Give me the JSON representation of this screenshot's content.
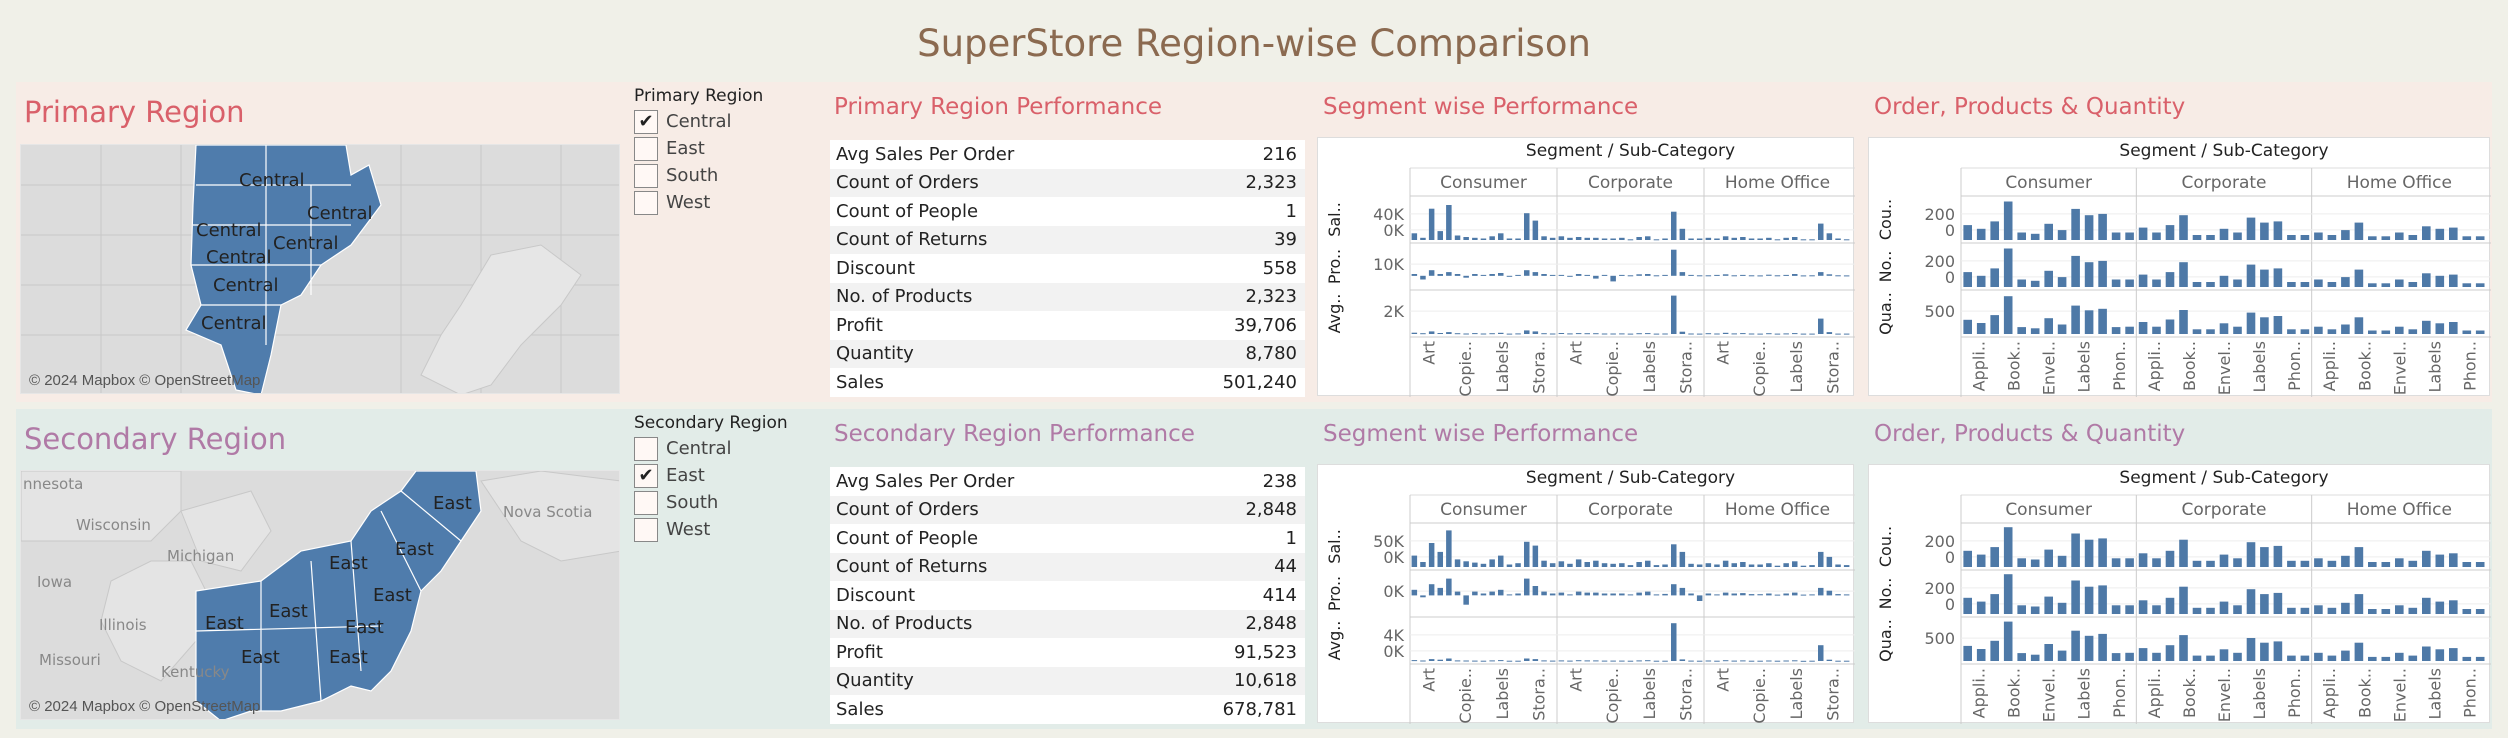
{
  "title": "SuperStore Region-wise Comparison",
  "colors": {
    "bar": "#4e79a7",
    "primary_accent": "#d9606a",
    "secondary_accent": "#b07aa6",
    "title": "#8b6a50"
  },
  "primary": {
    "region_title": "Primary Region",
    "map": {
      "labels": [
        "Central",
        "Central",
        "Central",
        "Central",
        "Central",
        "Central",
        "Central"
      ],
      "credit": "© 2024 Mapbox © OpenStreetMap"
    },
    "filter": {
      "title": "Primary Region",
      "options": [
        {
          "label": "Central",
          "checked": true
        },
        {
          "label": "East",
          "checked": false
        },
        {
          "label": "South",
          "checked": false
        },
        {
          "label": "West",
          "checked": false
        }
      ]
    },
    "performance_title": "Primary Region Performance",
    "kpis": [
      {
        "label": "Avg Sales Per Order",
        "value": "216"
      },
      {
        "label": "Count of Orders",
        "value": "2,323"
      },
      {
        "label": "Count of People",
        "value": "1"
      },
      {
        "label": "Count of Returns",
        "value": "39"
      },
      {
        "label": "Discount",
        "value": "558"
      },
      {
        "label": "No. of Products",
        "value": "2,323"
      },
      {
        "label": "Profit",
        "value": "39,706"
      },
      {
        "label": "Quantity",
        "value": "8,780"
      },
      {
        "label": "Sales",
        "value": "501,240"
      }
    ],
    "segment_title": "Segment wise Performance",
    "order_title": "Order, Products & Quantity"
  },
  "secondary": {
    "region_title": "Secondary Region",
    "map": {
      "labels": [
        "East",
        "East",
        "East",
        "East",
        "East",
        "East",
        "East",
        "East",
        "East"
      ],
      "bg_labels": [
        "nnesota",
        "Wisconsin",
        "Michigan",
        "Iowa",
        "Illinois",
        "Missouri",
        "Kentucky",
        "Nova Scotia"
      ],
      "credit": "© 2024 Mapbox © OpenStreetMap"
    },
    "filter": {
      "title": "Secondary Region",
      "options": [
        {
          "label": "Central",
          "checked": false
        },
        {
          "label": "East",
          "checked": true
        },
        {
          "label": "South",
          "checked": false
        },
        {
          "label": "West",
          "checked": false
        }
      ]
    },
    "performance_title": "Secondary Region Performance",
    "kpis": [
      {
        "label": "Avg Sales Per Order",
        "value": "238"
      },
      {
        "label": "Count of Orders",
        "value": "2,848"
      },
      {
        "label": "Count of People",
        "value": "1"
      },
      {
        "label": "Count of Returns",
        "value": "44"
      },
      {
        "label": "Discount",
        "value": "414"
      },
      {
        "label": "No. of Products",
        "value": "2,848"
      },
      {
        "label": "Profit",
        "value": "91,523"
      },
      {
        "label": "Quantity",
        "value": "10,618"
      },
      {
        "label": "Sales",
        "value": "678,781"
      }
    ],
    "segment_title": "Segment wise Performance",
    "order_title": "Order, Products & Quantity"
  },
  "chart_data": [
    {
      "type": "bar",
      "title": "Segment / Sub-Category",
      "region": "primary",
      "segments": [
        "Consumer",
        "Corporate",
        "Home Office"
      ],
      "xticks": [
        "Art",
        "Copie..",
        "Labels",
        "Stora.."
      ],
      "rows": [
        {
          "label": "Sal..",
          "ticks": [
            "40K",
            "0K"
          ],
          "ylim": [
            0,
            55000
          ],
          "values": [
            [
              9000,
              3000,
              42000,
              12000,
              47000,
              6000,
              4000,
              3000,
              2000,
              5000,
              9000,
              2000,
              2000,
              36000,
              26000,
              5000,
              3000
            ],
            [
              5000,
              3000,
              4000,
              3000,
              3000,
              2000,
              2000,
              3000,
              1000,
              4000,
              5000,
              1000,
              2000,
              38000,
              15000,
              2000,
              2000
            ],
            [
              3000,
              2000,
              5000,
              3000,
              4000,
              2000,
              2000,
              3000,
              1000,
              3000,
              4000,
              1000,
              1000,
              22000,
              9000,
              2000,
              1000
            ]
          ]
        },
        {
          "label": "Pro..",
          "ticks": [
            "10K"
          ],
          "ylim": [
            -6000,
            16000
          ],
          "values": [
            [
              1000,
              -2000,
              3000,
              1000,
              2000,
              1000,
              -1000,
              1000,
              500,
              1000,
              1500,
              -500,
              500,
              3000,
              2000,
              1000,
              500
            ],
            [
              500,
              -500,
              1000,
              500,
              -1500,
              500,
              -3000,
              500,
              300,
              800,
              1000,
              300,
              500,
              14000,
              2000,
              500,
              300
            ],
            [
              300,
              500,
              800,
              300,
              500,
              300,
              200,
              600,
              300,
              500,
              1000,
              200,
              300,
              2000,
              800,
              300,
              200
            ]
          ]
        },
        {
          "label": "Avg..",
          "ticks": [
            "2K"
          ],
          "ylim": [
            0,
            3200
          ],
          "values": [
            [
              100,
              60,
              200,
              80,
              150,
              60,
              40,
              70,
              40,
              60,
              90,
              30,
              50,
              280,
              200,
              60,
              40
            ],
            [
              80,
              50,
              70,
              60,
              60,
              40,
              40,
              50,
              30,
              60,
              70,
              30,
              40,
              3000,
              180,
              40,
              30
            ],
            [
              60,
              40,
              90,
              50,
              70,
              40,
              30,
              60,
              30,
              50,
              70,
              30,
              30,
              1200,
              150,
              30,
              30
            ]
          ]
        }
      ]
    },
    {
      "type": "bar",
      "title": "Segment / Sub-Category",
      "region": "primary",
      "segments": [
        "Consumer",
        "Corporate",
        "Home Office"
      ],
      "xticks": [
        "Appli..",
        "Book..",
        "Envel..",
        "Labels",
        "Phon.."
      ],
      "rows": [
        {
          "label": "Cou..",
          "ticks": [
            "200",
            "0"
          ],
          "ylim": [
            0,
            330
          ],
          "values": [
            [
              120,
              90,
              150,
              310,
              60,
              50,
              130,
              80,
              250,
              200,
              210,
              60,
              60
            ],
            [
              100,
              60,
              120,
              200,
              40,
              40,
              90,
              60,
              180,
              140,
              150,
              40,
              40
            ],
            [
              60,
              40,
              80,
              140,
              30,
              30,
              60,
              40,
              110,
              90,
              100,
              30,
              30
            ]
          ]
        },
        {
          "label": "No..",
          "ticks": [
            "200",
            "0"
          ],
          "ylim": [
            0,
            330
          ],
          "values": [
            [
              120,
              90,
              150,
              310,
              60,
              50,
              130,
              80,
              250,
              200,
              210,
              60,
              60
            ],
            [
              100,
              60,
              120,
              200,
              40,
              40,
              90,
              60,
              180,
              140,
              150,
              40,
              40
            ],
            [
              60,
              40,
              80,
              140,
              30,
              30,
              60,
              40,
              110,
              90,
              100,
              30,
              30
            ]
          ]
        },
        {
          "label": "Qua..",
          "ticks": [
            "500"
          ],
          "ylim": [
            0,
            1300
          ],
          "values": [
            [
              450,
              350,
              600,
              1200,
              220,
              180,
              500,
              300,
              900,
              750,
              800,
              220,
              230
            ],
            [
              380,
              230,
              460,
              760,
              150,
              150,
              340,
              230,
              680,
              530,
              570,
              150,
              150
            ],
            [
              230,
              150,
              300,
              530,
              110,
              110,
              230,
              150,
              420,
              340,
              380,
              110,
              110
            ]
          ]
        }
      ]
    },
    {
      "type": "bar",
      "title": "Segment / Sub-Category",
      "region": "secondary",
      "segments": [
        "Consumer",
        "Corporate",
        "Home Office"
      ],
      "xticks": [
        "Art",
        "Copie..",
        "Labels",
        "Stora.."
      ],
      "rows": [
        {
          "label": "Sal..",
          "ticks": [
            "50K",
            "0K"
          ],
          "ylim": [
            0,
            65000
          ],
          "values": [
            [
              18000,
              8000,
              38000,
              24000,
              58000,
              12000,
              9000,
              7000,
              5000,
              12000,
              18000,
              4000,
              6000,
              40000,
              34000,
              10000,
              6000
            ],
            [
              9000,
              5000,
              12000,
              8000,
              10000,
              6000,
              5000,
              6000,
              3000,
              8000,
              10000,
              3000,
              4000,
              36000,
              24000,
              5000,
              4000
            ],
            [
              6000,
              4000,
              10000,
              6000,
              8000,
              4000,
              4000,
              6000,
              2000,
              6000,
              9000,
              2000,
              3000,
              24000,
              16000,
              4000,
              3000
            ]
          ]
        },
        {
          "label": "Pro..",
          "ticks": [
            "0K"
          ],
          "ylim": [
            -10000,
            12000
          ],
          "values": [
            [
              3000,
              -1000,
              6000,
              4000,
              9000,
              2000,
              -5000,
              2000,
              1000,
              2000,
              3000,
              500,
              1000,
              9000,
              5000,
              2000,
              1000
            ],
            [
              1500,
              500,
              2000,
              1500,
              1500,
              1000,
              1000,
              1000,
              500,
              1500,
              2000,
              500,
              800,
              6000,
              4000,
              1000,
              -3000
            ],
            [
              1000,
              500,
              1500,
              1000,
              1200,
              700,
              600,
              1000,
              400,
              1000,
              1500,
              400,
              500,
              4000,
              2500,
              700,
              500
            ]
          ]
        },
        {
          "label": "Avg..",
          "ticks": [
            "4K",
            "0K"
          ],
          "ylim": [
            0,
            6500
          ],
          "values": [
            [
              150,
              80,
              300,
              200,
              400,
              100,
              80,
              60,
              50,
              100,
              150,
              40,
              50,
              400,
              300,
              90,
              60
            ],
            [
              100,
              60,
              120,
              90,
              100,
              70,
              60,
              70,
              40,
              100,
              120,
              40,
              50,
              6000,
              250,
              60,
              50
            ],
            [
              80,
              50,
              120,
              70,
              90,
              50,
              50,
              80,
              40,
              80,
              110,
              30,
              40,
              2500,
              200,
              50,
              40
            ]
          ]
        }
      ]
    },
    {
      "type": "bar",
      "title": "Segment / Sub-Category",
      "region": "secondary",
      "segments": [
        "Consumer",
        "Corporate",
        "Home Office"
      ],
      "xticks": [
        "Appli..",
        "Book..",
        "Envel..",
        "Labels",
        "Phon.."
      ],
      "rows": [
        {
          "label": "Cou..",
          "ticks": [
            "200",
            "0"
          ],
          "ylim": [
            0,
            330
          ],
          "values": [
            [
              130,
              100,
              160,
              320,
              70,
              60,
              140,
              90,
              270,
              220,
              230,
              70,
              70
            ],
            [
              110,
              70,
              130,
              220,
              50,
              50,
              100,
              70,
              200,
              160,
              170,
              50,
              50
            ],
            [
              70,
              50,
              90,
              160,
              40,
              40,
              70,
              50,
              130,
              100,
              110,
              40,
              40
            ]
          ]
        },
        {
          "label": "No..",
          "ticks": [
            "200",
            "0"
          ],
          "ylim": [
            0,
            330
          ],
          "values": [
            [
              130,
              100,
              160,
              320,
              70,
              60,
              140,
              90,
              270,
              220,
              230,
              70,
              70
            ],
            [
              110,
              70,
              130,
              220,
              50,
              50,
              100,
              70,
              200,
              160,
              170,
              50,
              50
            ],
            [
              70,
              50,
              90,
              160,
              40,
              40,
              70,
              50,
              130,
              100,
              110,
              40,
              40
            ]
          ]
        },
        {
          "label": "Qua..",
          "ticks": [
            "500"
          ],
          "ylim": [
            0,
            1300
          ],
          "values": [
            [
              480,
              380,
              640,
              1250,
              250,
              200,
              540,
              330,
              960,
              800,
              860,
              250,
              260
            ],
            [
              410,
              260,
              500,
              820,
              170,
              170,
              370,
              260,
              730,
              580,
              620,
              170,
              170
            ],
            [
              260,
              170,
              330,
              580,
              130,
              130,
              260,
              170,
              460,
              370,
              410,
              130,
              130
            ]
          ]
        }
      ]
    }
  ]
}
